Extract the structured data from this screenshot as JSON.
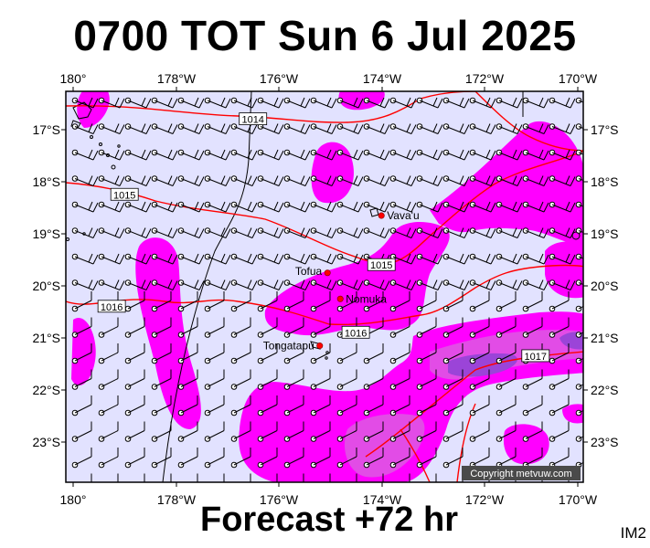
{
  "header": {
    "title": "0700 TOT Sun 6 Jul 2025"
  },
  "footer": {
    "forecast": "Forecast +72 hr",
    "model_code": "IM2"
  },
  "copyright": "Copyright metvuw.com",
  "axes": {
    "lon_ticks": [
      "180°",
      "178°W",
      "176°W",
      "174°W",
      "172°W",
      "170°W"
    ],
    "lat_ticks": [
      "17°S",
      "18°S",
      "19°S",
      "20°S",
      "21°S",
      "22°S",
      "23°S"
    ]
  },
  "places": [
    {
      "name": "Vava'u",
      "lon": -174.0,
      "lat": -18.65
    },
    {
      "name": "Tofua",
      "lon": -175.05,
      "lat": -19.75
    },
    {
      "name": "Nomuka",
      "lon": -174.8,
      "lat": -20.25
    },
    {
      "name": "Tongatapu",
      "lon": -175.2,
      "lat": -21.15
    }
  ],
  "isobars": [
    {
      "label": "1014",
      "lon": -176.5,
      "lat": -16.8
    },
    {
      "label": "1015",
      "lon": -179.0,
      "lat": -18.25
    },
    {
      "label": "1015",
      "lon": -174.0,
      "lat": -19.6
    },
    {
      "label": "1016",
      "lon": -179.25,
      "lat": -20.4
    },
    {
      "label": "1016",
      "lon": -174.5,
      "lat": -20.9
    },
    {
      "label": "1017",
      "lon": -171.0,
      "lat": -21.35
    }
  ],
  "colors": {
    "ocean": "#e2e2ff",
    "rain_light": "#ff00ff",
    "rain_mid": "#e24ce6",
    "rain_heavy": "#9b44d8",
    "isobar": "#ff0000",
    "wind_barb": "#000000"
  }
}
